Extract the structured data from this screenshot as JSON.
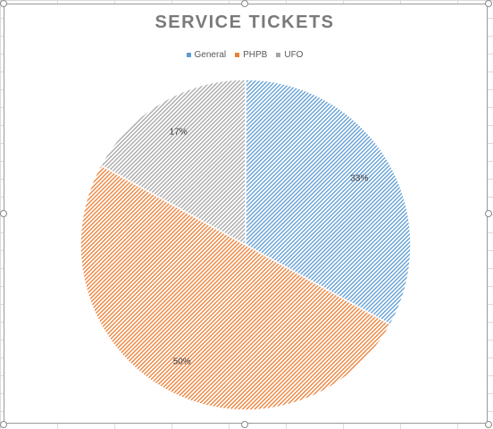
{
  "colors": {
    "general": "#5b9bd5",
    "phpb": "#ed7d31",
    "ufo": "#a5a5a5"
  },
  "chart_data": {
    "type": "pie",
    "title": "SERVICE TICKETS",
    "legend_position": "top",
    "slices": [
      {
        "name": "General",
        "value": 33,
        "label": "33%",
        "color": "#5b9bd5",
        "fill": "diagonal-hatch"
      },
      {
        "name": "PHPB",
        "value": 50,
        "label": "50%",
        "color": "#ed7d31",
        "fill": "diagonal-hatch"
      },
      {
        "name": "UFO",
        "value": 17,
        "label": "17%",
        "color": "#a5a5a5",
        "fill": "diagonal-hatch"
      }
    ]
  }
}
